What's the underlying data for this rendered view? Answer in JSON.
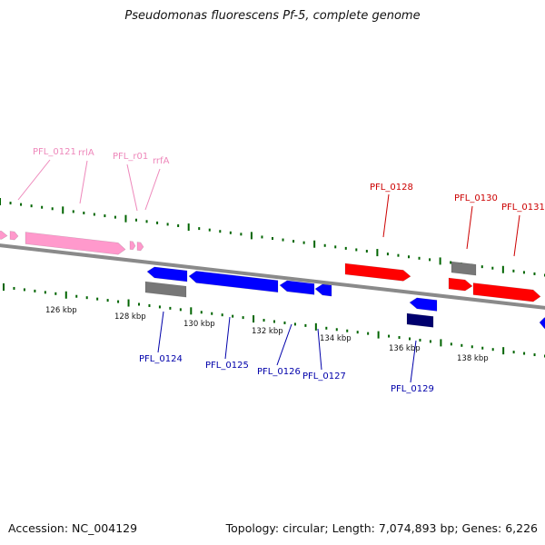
{
  "title": "Pseudomonas fluorescens Pf-5, complete genome",
  "accession": "Accession: NC_004129",
  "summary": "Topology: circular; Length: 7,074,893 bp; Genes: 6,226",
  "colors": {
    "forward_gene": "#ff0000",
    "reverse_gene": "#0000ff",
    "rna_gene": "#ff99cc",
    "other_feature": "#777777",
    "dark_reverse": "#00006e",
    "tick": "#006400",
    "backbone": "#8a8a8a",
    "forward_label": "#cc0000",
    "reverse_label": "#0000aa",
    "rna_label": "#ee88bb"
  },
  "scale_labels": [
    "126 kbp",
    "128 kbp",
    "130 kbp",
    "132 kbp",
    "134 kbp",
    "136 kbp",
    "138 kbp"
  ],
  "labels": {
    "forward": [
      "PFL_0128",
      "PFL_0130",
      "PFL_0131"
    ],
    "reverse": [
      "PFL_0124",
      "PFL_0125",
      "PFL_0126",
      "PFL_0127",
      "PFL_0129"
    ],
    "rna": [
      "PFL_0121",
      "rrlA",
      "PFL_r01",
      "rrfA"
    ]
  }
}
